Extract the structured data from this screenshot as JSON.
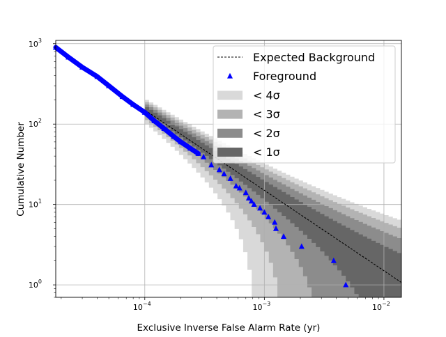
{
  "chart_data": {
    "type": "scatter",
    "xlabel": "Exclusive Inverse False Alarm Rate (yr)",
    "ylabel": "Cumulative Number",
    "xscale": "log",
    "yscale": "log",
    "xlim": [
      1.8e-05,
      0.014
    ],
    "ylim": [
      0.7,
      1100
    ],
    "grid": true,
    "legend_position": "top-right",
    "x_ticks": [
      {
        "value": 0.0001,
        "base": "10",
        "exp": "−4"
      },
      {
        "value": 0.001,
        "base": "10",
        "exp": "−3"
      },
      {
        "value": 0.01,
        "base": "10",
        "exp": "−2"
      }
    ],
    "y_ticks": [
      {
        "value": 1,
        "base": "10",
        "exp": "0"
      },
      {
        "value": 10,
        "base": "10",
        "exp": "1"
      },
      {
        "value": 100,
        "base": "10",
        "exp": "2"
      },
      {
        "value": 1000,
        "base": "10",
        "exp": "3"
      }
    ],
    "expected_background": {
      "name": "Expected Background",
      "x": [
        1.8e-05,
        0.014
      ],
      "y": [
        833,
        1.07
      ],
      "style": "dashed",
      "color": "#000000"
    },
    "bands": [
      {
        "name": "< 4σ",
        "sigma": 4,
        "color": "#d9d9d9"
      },
      {
        "name": "< 3σ",
        "sigma": 3,
        "color": "#b3b3b3"
      },
      {
        "name": "< 2σ",
        "sigma": 2,
        "color": "#8c8c8c"
      },
      {
        "name": "< 1σ",
        "sigma": 1,
        "color": "#666666"
      }
    ],
    "band_start_x": 0.0001,
    "foreground": {
      "name": "Foreground",
      "marker": "triangle-up",
      "color": "#0000ff",
      "points": [
        [
          1.8e-05,
          900
        ],
        [
          2.3e-05,
          680
        ],
        [
          3e-05,
          510
        ],
        [
          4e-05,
          390
        ],
        [
          5e-05,
          300
        ],
        [
          6.5e-05,
          220
        ],
        [
          8e-05,
          175
        ],
        [
          0.0001,
          140
        ],
        [
          0.00012,
          110
        ],
        [
          0.000145,
          88
        ],
        [
          0.000175,
          70
        ],
        [
          0.0002,
          60
        ],
        [
          0.00024,
          50
        ],
        [
          0.00028,
          43
        ],
        [
          0.00031,
          39
        ],
        [
          0.00036,
          31
        ],
        [
          0.00042,
          27
        ],
        [
          0.00046,
          24
        ],
        [
          0.00052,
          21
        ],
        [
          0.00058,
          17
        ],
        [
          0.00062,
          16
        ],
        [
          0.0007,
          14
        ],
        [
          0.00074,
          12
        ],
        [
          0.00078,
          11
        ],
        [
          0.00082,
          10
        ],
        [
          0.00092,
          9
        ],
        [
          0.001,
          8
        ],
        [
          0.00108,
          7
        ],
        [
          0.00122,
          6
        ],
        [
          0.00125,
          5
        ],
        [
          0.00145,
          4
        ],
        [
          0.00205,
          3
        ],
        [
          0.0038,
          2
        ],
        [
          0.0048,
          1
        ]
      ]
    }
  }
}
